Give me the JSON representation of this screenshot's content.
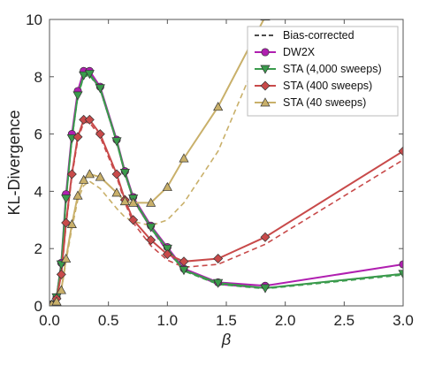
{
  "chart_data": {
    "type": "line",
    "xlabel": "β",
    "ylabel": "KL-Divergence",
    "xlim": [
      0.0,
      3.0
    ],
    "ylim": [
      0,
      10
    ],
    "xticks": [
      "0.0",
      "0.5",
      "1.0",
      "1.5",
      "2.0",
      "2.5",
      "3.0"
    ],
    "yticks": [
      "0",
      "2",
      "4",
      "6",
      "8",
      "10"
    ],
    "grid": false,
    "legend_position": "top-right",
    "legend_bias_label": "Bias-corrected",
    "series": [
      {
        "name": "DW2X",
        "color": "#b01fb0",
        "marker": "circle",
        "x": [
          0.02,
          0.06,
          0.1,
          0.14,
          0.19,
          0.24,
          0.29,
          0.34,
          0.43,
          0.57,
          0.64,
          0.71,
          0.86,
          1.0,
          1.14,
          1.43,
          1.83,
          3.0
        ],
        "y": [
          0.05,
          0.3,
          1.5,
          3.9,
          6.0,
          7.5,
          8.2,
          8.2,
          7.65,
          5.8,
          4.7,
          3.8,
          2.8,
          2.05,
          1.3,
          0.82,
          0.7,
          1.45
        ],
        "corrected": [
          0.05,
          0.3,
          1.4,
          3.8,
          5.9,
          7.4,
          8.1,
          8.1,
          7.55,
          5.7,
          4.6,
          3.7,
          2.7,
          1.9,
          1.25,
          0.75,
          0.62,
          1.12
        ]
      },
      {
        "name": "STA (4,000 sweeps)",
        "color": "#3a9b4c",
        "marker": "triangle-down",
        "x": [
          0.02,
          0.06,
          0.1,
          0.14,
          0.19,
          0.24,
          0.29,
          0.34,
          0.43,
          0.57,
          0.64,
          0.71,
          0.86,
          1.0,
          1.14,
          1.43,
          1.83,
          3.0
        ],
        "y": [
          0.05,
          0.3,
          1.45,
          3.75,
          5.85,
          7.35,
          8.05,
          8.1,
          7.6,
          5.75,
          4.65,
          3.75,
          2.75,
          2.0,
          1.25,
          0.8,
          0.62,
          1.12
        ],
        "corrected": [
          0.05,
          0.3,
          1.4,
          3.7,
          5.8,
          7.3,
          8.0,
          8.05,
          7.55,
          5.7,
          4.6,
          3.7,
          2.7,
          1.95,
          1.22,
          0.75,
          0.6,
          1.08
        ]
      },
      {
        "name": "STA (400 sweeps)",
        "color": "#c84a4a",
        "marker": "diamond",
        "x": [
          0.02,
          0.06,
          0.1,
          0.14,
          0.19,
          0.24,
          0.29,
          0.34,
          0.43,
          0.57,
          0.64,
          0.71,
          0.86,
          1.0,
          1.14,
          1.43,
          1.83,
          3.0
        ],
        "y": [
          0.05,
          0.25,
          1.1,
          2.9,
          4.6,
          5.9,
          6.5,
          6.5,
          6.0,
          4.6,
          3.7,
          3.0,
          2.3,
          1.8,
          1.55,
          1.65,
          2.4,
          5.4
        ],
        "corrected": [
          0.05,
          0.25,
          1.05,
          2.8,
          4.5,
          5.8,
          6.4,
          6.4,
          5.9,
          4.5,
          3.6,
          2.9,
          2.1,
          1.6,
          1.35,
          1.45,
          2.15,
          5.1
        ]
      },
      {
        "name": "STA (40 sweeps)",
        "color": "#c9b06a",
        "marker": "triangle-up",
        "x": [
          0.02,
          0.06,
          0.1,
          0.14,
          0.19,
          0.24,
          0.29,
          0.34,
          0.43,
          0.57,
          0.64,
          0.71,
          0.86,
          1.0,
          1.14,
          1.43,
          1.83
        ],
        "y": [
          0.05,
          0.15,
          0.55,
          1.65,
          2.85,
          3.85,
          4.4,
          4.6,
          4.5,
          3.95,
          3.65,
          3.6,
          3.6,
          4.15,
          5.15,
          6.95,
          10.1
        ],
        "corrected": [
          0.05,
          0.15,
          0.5,
          1.55,
          2.7,
          3.7,
          4.2,
          4.35,
          4.1,
          3.4,
          3.1,
          2.95,
          2.8,
          3.0,
          3.6,
          5.4,
          9.3
        ]
      }
    ]
  }
}
